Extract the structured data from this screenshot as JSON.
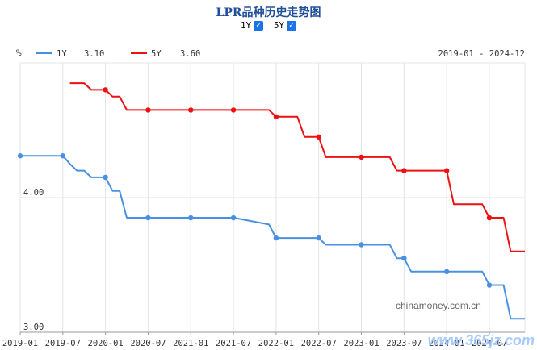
{
  "title": "LPR品种历史走势图",
  "toggles": [
    {
      "label": "1Y",
      "checked": true
    },
    {
      "label": "5Y",
      "checked": true
    }
  ],
  "checkmark": "✓",
  "unit_label": "%",
  "legend": [
    {
      "name": "1Y",
      "value": "3.10",
      "color": "#4a90e2"
    },
    {
      "name": "5Y",
      "value": "3.60",
      "color": "#ee1111"
    }
  ],
  "date_range": "2019-01 - 2024-12",
  "watermarks": {
    "source": "chinamoney.com.cn",
    "site": "www.365jz.com"
  },
  "chart_data": {
    "type": "line",
    "x_ticks": [
      "2019-01",
      "2019-07",
      "2020-01",
      "2020-07",
      "2021-01",
      "2021-07",
      "2022-01",
      "2022-07",
      "2023-01",
      "2023-07",
      "2024-01",
      "2024-07"
    ],
    "y_ticks": [
      "3.00",
      "4.00"
    ],
    "xlim": [
      "2019-01",
      "2024-12"
    ],
    "ylim": [
      3.0,
      5.0
    ],
    "grid": true,
    "legend_position": "top-left",
    "series": [
      {
        "name": "1Y",
        "color": "#4a90e2",
        "points": [
          [
            "2019-01",
            4.31
          ],
          [
            "2019-07",
            4.31
          ],
          [
            "2019-08",
            4.25
          ],
          [
            "2019-09",
            4.2
          ],
          [
            "2019-10",
            4.2
          ],
          [
            "2019-11",
            4.15
          ],
          [
            "2020-01",
            4.15
          ],
          [
            "2020-02",
            4.05
          ],
          [
            "2020-03",
            4.05
          ],
          [
            "2020-04",
            3.85
          ],
          [
            "2020-07",
            3.85
          ],
          [
            "2021-01",
            3.85
          ],
          [
            "2021-07",
            3.85
          ],
          [
            "2021-12",
            3.8
          ],
          [
            "2022-01",
            3.7
          ],
          [
            "2022-07",
            3.7
          ],
          [
            "2022-08",
            3.65
          ],
          [
            "2023-01",
            3.65
          ],
          [
            "2023-05",
            3.65
          ],
          [
            "2023-06",
            3.55
          ],
          [
            "2023-07",
            3.55
          ],
          [
            "2023-08",
            3.45
          ],
          [
            "2024-01",
            3.45
          ],
          [
            "2024-06",
            3.45
          ],
          [
            "2024-07",
            3.35
          ],
          [
            "2024-08",
            3.35
          ],
          [
            "2024-09",
            3.35
          ],
          [
            "2024-10",
            3.1
          ],
          [
            "2024-12",
            3.1
          ]
        ],
        "markers": [
          "2019-01",
          "2019-07",
          "2020-01",
          "2020-07",
          "2021-01",
          "2021-07",
          "2022-01",
          "2022-07",
          "2023-01",
          "2023-07",
          "2024-01",
          "2024-07"
        ]
      },
      {
        "name": "5Y",
        "color": "#ee1111",
        "points": [
          [
            "2019-08",
            4.85
          ],
          [
            "2019-10",
            4.85
          ],
          [
            "2019-11",
            4.8
          ],
          [
            "2020-01",
            4.8
          ],
          [
            "2020-02",
            4.75
          ],
          [
            "2020-03",
            4.75
          ],
          [
            "2020-04",
            4.65
          ],
          [
            "2020-07",
            4.65
          ],
          [
            "2021-01",
            4.65
          ],
          [
            "2021-07",
            4.65
          ],
          [
            "2021-12",
            4.65
          ],
          [
            "2022-01",
            4.6
          ],
          [
            "2022-04",
            4.6
          ],
          [
            "2022-05",
            4.45
          ],
          [
            "2022-07",
            4.45
          ],
          [
            "2022-08",
            4.3
          ],
          [
            "2023-01",
            4.3
          ],
          [
            "2023-05",
            4.3
          ],
          [
            "2023-06",
            4.2
          ],
          [
            "2023-07",
            4.2
          ],
          [
            "2024-01",
            4.2
          ],
          [
            "2024-02",
            3.95
          ],
          [
            "2024-06",
            3.95
          ],
          [
            "2024-07",
            3.85
          ],
          [
            "2024-08",
            3.85
          ],
          [
            "2024-09",
            3.85
          ],
          [
            "2024-10",
            3.6
          ],
          [
            "2024-12",
            3.6
          ]
        ],
        "markers": [
          "2020-01",
          "2020-07",
          "2021-01",
          "2021-07",
          "2022-01",
          "2022-07",
          "2023-01",
          "2023-07",
          "2024-01",
          "2024-07"
        ]
      }
    ]
  }
}
